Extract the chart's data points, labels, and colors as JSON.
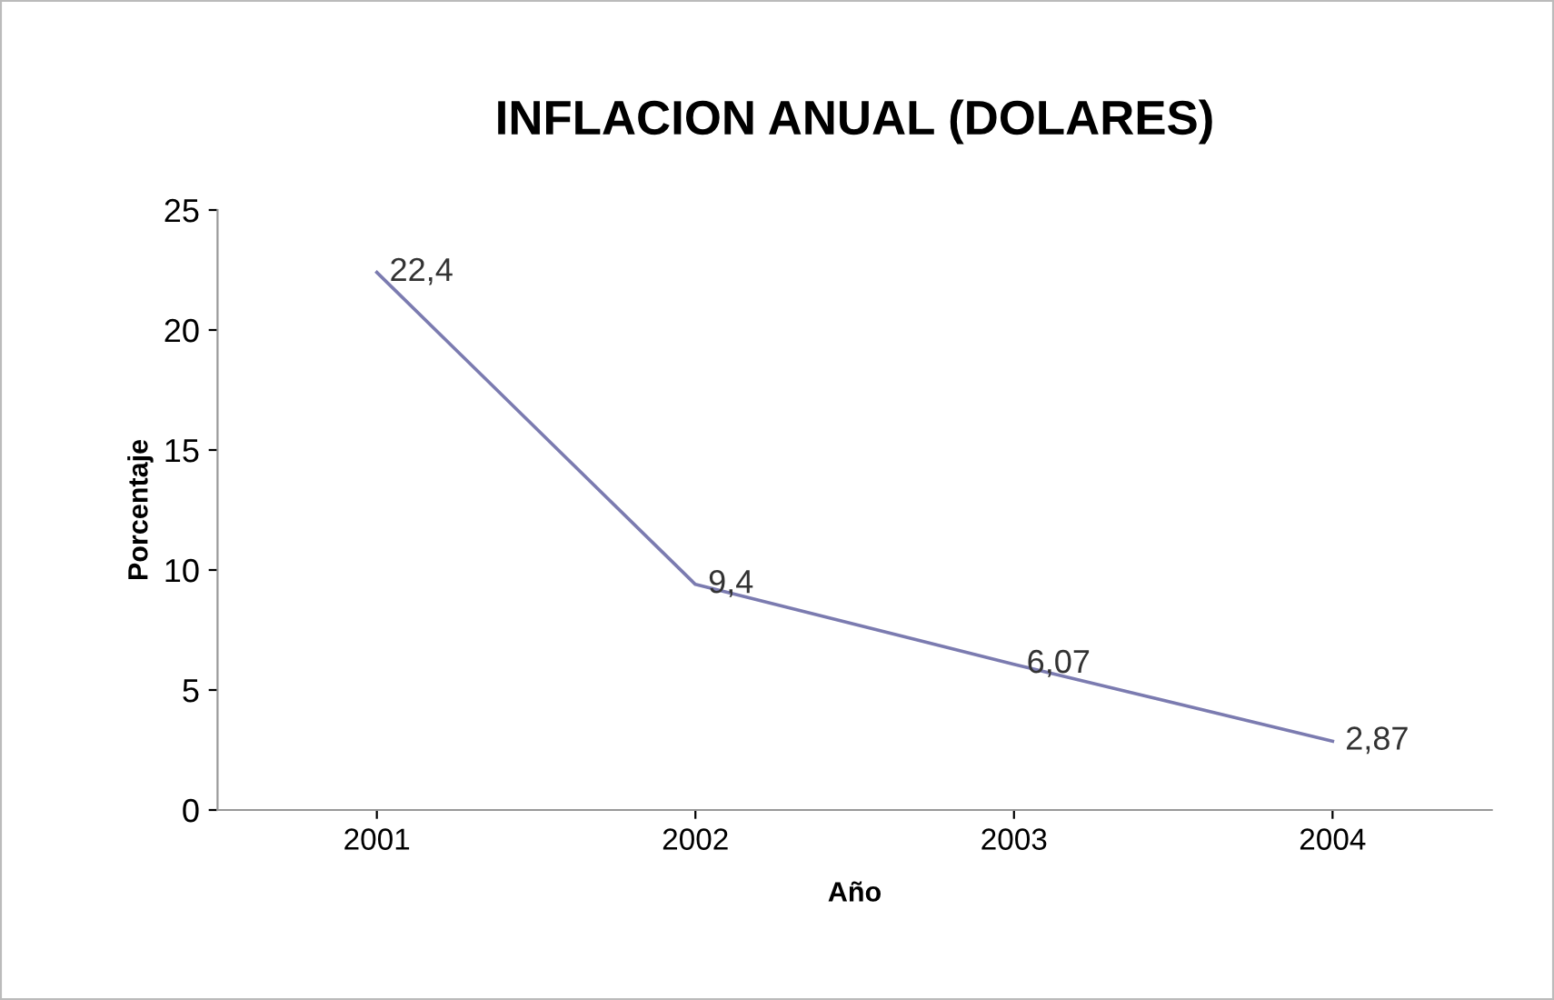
{
  "chart_data": {
    "type": "line",
    "title": "INFLACION ANUAL (DOLARES)",
    "xlabel": "Año",
    "ylabel": "Porcentaje",
    "categories": [
      "2001",
      "2002",
      "2003",
      "2004"
    ],
    "series": [
      {
        "color": "#7b7bb0",
        "values": [
          22.4,
          9.4,
          6.07,
          2.87
        ],
        "value_labels": [
          "22,4",
          "9,4",
          "6,07",
          "2,87"
        ]
      }
    ],
    "ylim": [
      0,
      25
    ],
    "yticks": [
      0,
      5,
      10,
      15,
      20,
      25
    ],
    "grid": false,
    "legend": false,
    "marker": "none",
    "line_style": "solid"
  }
}
